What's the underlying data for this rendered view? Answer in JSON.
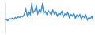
{
  "chart_data": {
    "type": "line",
    "categories": [
      null,
      null,
      null,
      null,
      null,
      null,
      null,
      null,
      null,
      null,
      null,
      null,
      null,
      null,
      null,
      null,
      null,
      null,
      null,
      null,
      null,
      null,
      null,
      null,
      null,
      null,
      null,
      null,
      null,
      null,
      null,
      null,
      null,
      null,
      null,
      null,
      null,
      null,
      null,
      null,
      null,
      null,
      null,
      null,
      null,
      null,
      null,
      null,
      null,
      null,
      null,
      null,
      null,
      null,
      null,
      null,
      null,
      null,
      null,
      null
    ],
    "values": [
      42,
      44,
      40,
      46,
      45,
      48,
      44,
      50,
      47,
      52,
      50,
      55,
      53,
      60,
      78,
      56,
      70,
      60,
      95,
      66,
      72,
      88,
      62,
      75,
      68,
      92,
      64,
      70,
      60,
      72,
      66,
      58,
      74,
      62,
      68,
      55,
      64,
      60,
      70,
      52,
      62,
      58,
      66,
      50,
      60,
      55,
      64,
      48,
      58,
      52,
      60,
      45,
      55,
      50,
      58,
      42,
      50,
      46,
      54,
      40
    ],
    "color": "#3a8fd8",
    "ylim": [
      0,
      100
    ],
    "grid": false,
    "tick_labels": false
  }
}
